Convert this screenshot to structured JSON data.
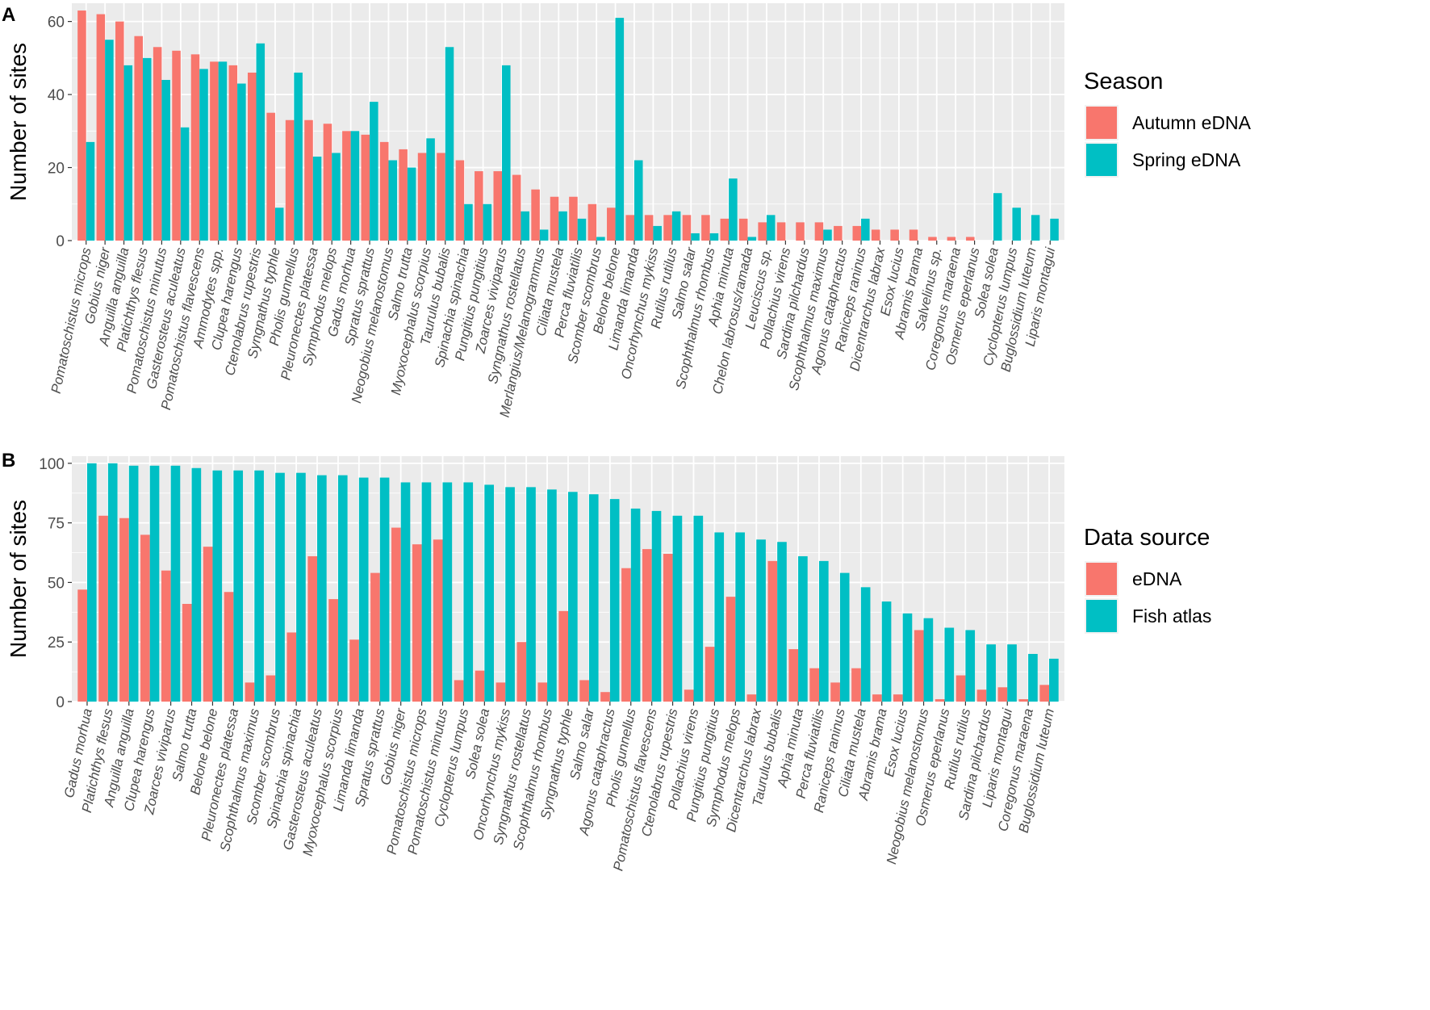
{
  "colors": {
    "autumn": "#F8766D",
    "spring": "#00BFC4",
    "panel_bg": "#EBEBEB",
    "grid": "#FFFFFF"
  },
  "chart_data": [
    {
      "panel_label": "A",
      "type": "bar",
      "ylabel": "Number of sites",
      "ylim": [
        0,
        65
      ],
      "yticks": [
        0,
        20,
        40,
        60
      ],
      "legend": {
        "title": "Season",
        "position": "right"
      },
      "categories": [
        "Pomatoschistus microps",
        "Gobius niger",
        "Anguilla anguilla",
        "Platichthys flesus",
        "Pomatoschistus minutus",
        "Gasterosteus aculeatus",
        "Pomatoschistus flavescens",
        "Ammodytes spp.",
        "Clupea harengus",
        "Ctenolabrus rupestris",
        "Syngnathus typhle",
        "Pholis gunnellus",
        "Pleuronectes platessa",
        "Symphodus melops",
        "Gadus morhua",
        "Spratus sprattus",
        "Neogobius melanostomus",
        "Salmo trutta",
        "Myoxocephalus scorpius",
        "Taurulus bubalis",
        "Spinachia spinachia",
        "Pungitius pungitius",
        "Zoarces viviparus",
        "Syngnathus rostellatus",
        "Merlangius/Melanogrammus",
        "Ciliata mustela",
        "Perca fluviatilis",
        "Scomber scombrus",
        "Belone belone",
        "Limanda limanda",
        "Oncorhynchus mykiss",
        "Rutilus rutilus",
        "Salmo salar",
        "Scophthalmus rhombus",
        "Aphia minuta",
        "Chelon labrosus/ramada",
        "Leuciscus sp.",
        "Pollachius virens",
        "Sardina pilchardus",
        "Scophthalmus maximus",
        "Agonus cataphractus",
        "Raniceps raninus",
        "Dicentrarchus labrax",
        "Esox lucius",
        "Abramis brama",
        "Salvelinus sp.",
        "Coregonus maraena",
        "Osmerus eperlanus",
        "Solea solea",
        "Cyclopterus lumpus",
        "Buglossidium luteum",
        "Liparis montagui"
      ],
      "series": [
        {
          "name": "Autumn eDNA",
          "values": [
            63,
            62,
            60,
            56,
            53,
            52,
            51,
            49,
            48,
            46,
            35,
            33,
            33,
            32,
            30,
            29,
            27,
            25,
            24,
            24,
            22,
            19,
            19,
            18,
            14,
            12,
            12,
            10,
            9,
            7,
            7,
            7,
            7,
            7,
            6,
            6,
            5,
            5,
            5,
            5,
            4,
            4,
            3,
            3,
            3,
            1,
            1,
            1,
            0,
            0,
            0,
            0
          ]
        },
        {
          "name": "Spring eDNA",
          "values": [
            27,
            55,
            48,
            50,
            44,
            31,
            47,
            49,
            43,
            54,
            9,
            46,
            23,
            24,
            30,
            38,
            22,
            20,
            28,
            53,
            10,
            10,
            48,
            8,
            3,
            8,
            6,
            1,
            61,
            22,
            4,
            8,
            2,
            2,
            17,
            1,
            7,
            0,
            0,
            3,
            0,
            6,
            0,
            0,
            0,
            0,
            0,
            0,
            13,
            9,
            7,
            6
          ]
        }
      ]
    },
    {
      "panel_label": "B",
      "type": "bar",
      "ylabel": "Number of sites",
      "ylim": [
        0,
        103
      ],
      "yticks": [
        0,
        25,
        50,
        75,
        100
      ],
      "legend": {
        "title": "Data source",
        "position": "right"
      },
      "categories": [
        "Gadus morhua",
        "Platichthys flesus",
        "Anguilla anguilla",
        "Clupea harengus",
        "Zoarces viviparus",
        "Salmo trutta",
        "Belone belone",
        "Pleuronectes platessa",
        "Scophthalmus maximus",
        "Scomber scombrus",
        "Spinachia spinachia",
        "Gasterosteus aculeatus",
        "Myoxocephalus scorpius",
        "Limanda limanda",
        "Spratus sprattus",
        "Gobius niger",
        "Pomatoschistus microps",
        "Pomatoschistus minutus",
        "Cyclopterus lumpus",
        "Solea solea",
        "Oncorhynchus mykiss",
        "Syngnathus rostellatus",
        "Scophthalmus rhombus",
        "Syngnathus typhle",
        "Salmo salar",
        "Agonus cataphractus",
        "Pholis gunnellus",
        "Pomatoschistus flavescens",
        "Ctenolabrus rupestris",
        "Pollachius virens",
        "Pungitius pungitius",
        "Symphodus melops",
        "Dicentrarchus labrax",
        "Taurulus bubalis",
        "Aphia minuta",
        "Perca fluviatilis",
        "Raniceps raninus",
        "Ciliata mustela",
        "Abramis brama",
        "Esox lucius",
        "Neogobius melanostomus",
        "Osmerus eperlanus",
        "Rutilus rutilus",
        "Sardina pilchardus",
        "Liparis montagui",
        "Coregonus maraena",
        "Buglossidium luteum"
      ],
      "series": [
        {
          "name": "eDNA",
          "values": [
            47,
            78,
            77,
            70,
            55,
            41,
            65,
            46,
            8,
            11,
            29,
            61,
            43,
            26,
            54,
            73,
            66,
            68,
            9,
            13,
            8,
            25,
            8,
            38,
            9,
            4,
            56,
            64,
            62,
            5,
            23,
            44,
            3,
            59,
            22,
            14,
            8,
            14,
            3,
            3,
            30,
            1,
            11,
            5,
            6,
            1,
            7
          ]
        },
        {
          "name": "Fish atlas",
          "values": [
            100,
            100,
            99,
            99,
            99,
            98,
            97,
            97,
            97,
            96,
            96,
            95,
            95,
            94,
            94,
            92,
            92,
            92,
            92,
            91,
            90,
            90,
            89,
            88,
            87,
            85,
            81,
            80,
            78,
            78,
            71,
            71,
            68,
            67,
            61,
            59,
            54,
            48,
            42,
            37,
            35,
            31,
            30,
            24,
            24,
            20,
            18
          ]
        }
      ]
    }
  ]
}
